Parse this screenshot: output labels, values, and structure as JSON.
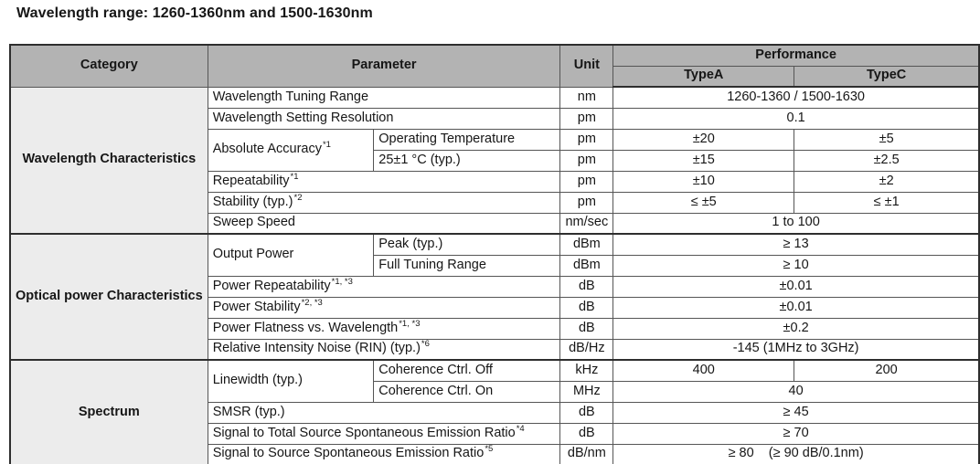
{
  "title": "Wavelength range: 1260-1360nm and 1500-1630nm",
  "colors": {
    "header_bg": "#b3b3b3",
    "category_bg": "#ececec",
    "border_thick": "#2e2e2e",
    "border_thin": "#555555",
    "text": "#161616"
  },
  "table": {
    "headers": {
      "category": "Category",
      "parameter": "Parameter",
      "unit": "Unit",
      "performance": "Performance",
      "type_a": "TypeA",
      "type_c": "TypeC"
    },
    "rows": [
      {
        "sep": false,
        "cells": [
          {
            "t": "Wavelength Characteristics",
            "cls": "cat",
            "rs": 7
          },
          {
            "t": "Wavelength Tuning Range",
            "cls": "param",
            "cs": 2
          },
          {
            "t": "nm",
            "cls": "unit"
          },
          {
            "t": "1260-1360 / 1500-1630",
            "cls": "val",
            "cs": 2
          }
        ]
      },
      {
        "sep": false,
        "cells": [
          {
            "t": "Wavelength Setting Resolution",
            "cls": "param",
            "cs": 2
          },
          {
            "t": "pm",
            "cls": "unit"
          },
          {
            "t": "0.1",
            "cls": "val",
            "cs": 2
          }
        ]
      },
      {
        "sep": false,
        "cells": [
          {
            "t": "Absolute Accuracy",
            "sup": "*1",
            "cls": "param",
            "rs": 2
          },
          {
            "t": "Operating Temperature",
            "cls": "sub"
          },
          {
            "t": "pm",
            "cls": "unit"
          },
          {
            "t": "±20",
            "cls": "val"
          },
          {
            "t": "±5",
            "cls": "val"
          }
        ]
      },
      {
        "sep": false,
        "cells": [
          {
            "t": "25±1 °C (typ.)",
            "cls": "sub"
          },
          {
            "t": "pm",
            "cls": "unit"
          },
          {
            "t": "±15",
            "cls": "val"
          },
          {
            "t": "±2.5",
            "cls": "val"
          }
        ]
      },
      {
        "sep": false,
        "cells": [
          {
            "t": "Repeatability",
            "sup": "*1",
            "cls": "param",
            "cs": 2
          },
          {
            "t": "pm",
            "cls": "unit"
          },
          {
            "t": "±10",
            "cls": "val"
          },
          {
            "t": "±2",
            "cls": "val"
          }
        ]
      },
      {
        "sep": false,
        "cells": [
          {
            "t": "Stability (typ.)",
            "sup": "*2",
            "cls": "param",
            "cs": 2
          },
          {
            "t": "pm",
            "cls": "unit"
          },
          {
            "t": "≤ ±5",
            "cls": "val"
          },
          {
            "t": "≤ ±1",
            "cls": "val"
          }
        ]
      },
      {
        "sep": false,
        "cells": [
          {
            "t": "Sweep Speed",
            "cls": "param",
            "cs": 2
          },
          {
            "t": "nm/sec",
            "cls": "unit"
          },
          {
            "t": "1 to 100",
            "cls": "val",
            "cs": 2
          }
        ]
      },
      {
        "sep": true,
        "cells": [
          {
            "t": "Optical power Characteristics",
            "cls": "cat",
            "rs": 6
          },
          {
            "t": "Output Power",
            "cls": "param",
            "rs": 2
          },
          {
            "t": "Peak (typ.)",
            "cls": "sub"
          },
          {
            "t": "dBm",
            "cls": "unit"
          },
          {
            "t": "≥ 13",
            "cls": "val",
            "cs": 2
          }
        ]
      },
      {
        "sep": false,
        "cells": [
          {
            "t": "Full Tuning Range",
            "cls": "sub"
          },
          {
            "t": "dBm",
            "cls": "unit"
          },
          {
            "t": "≥ 10",
            "cls": "val",
            "cs": 2
          }
        ]
      },
      {
        "sep": false,
        "cells": [
          {
            "t": "Power Repeatability",
            "sup": "*1, *3",
            "cls": "param",
            "cs": 2
          },
          {
            "t": "dB",
            "cls": "unit"
          },
          {
            "t": "±0.01",
            "cls": "val",
            "cs": 2
          }
        ]
      },
      {
        "sep": false,
        "cells": [
          {
            "t": "Power Stability",
            "sup": "*2, *3",
            "cls": "param",
            "cs": 2
          },
          {
            "t": "dB",
            "cls": "unit"
          },
          {
            "t": "±0.01",
            "cls": "val",
            "cs": 2
          }
        ]
      },
      {
        "sep": false,
        "cells": [
          {
            "t": "Power Flatness vs. Wavelength",
            "sup": "*1, *3",
            "cls": "param",
            "cs": 2
          },
          {
            "t": "dB",
            "cls": "unit"
          },
          {
            "t": "±0.2",
            "cls": "val",
            "cs": 2
          }
        ]
      },
      {
        "sep": false,
        "cells": [
          {
            "t": "Relative Intensity Noise (RIN) (typ.)",
            "sup": "*6",
            "cls": "param",
            "cs": 2
          },
          {
            "t": "dB/Hz",
            "cls": "unit"
          },
          {
            "t": "-145 (1MHz to 3GHz)",
            "cls": "val",
            "cs": 2
          }
        ]
      },
      {
        "sep": true,
        "cells": [
          {
            "t": "Spectrum",
            "cls": "cat",
            "rs": 5
          },
          {
            "t": "Linewidth (typ.)",
            "cls": "param",
            "rs": 2
          },
          {
            "t": "Coherence Ctrl. Off",
            "cls": "sub"
          },
          {
            "t": "kHz",
            "cls": "unit"
          },
          {
            "t": "400",
            "cls": "val"
          },
          {
            "t": "200",
            "cls": "val"
          }
        ]
      },
      {
        "sep": false,
        "cells": [
          {
            "t": "Coherence Ctrl. On",
            "cls": "sub"
          },
          {
            "t": "MHz",
            "cls": "unit"
          },
          {
            "t": "40",
            "cls": "val",
            "cs": 2
          }
        ]
      },
      {
        "sep": false,
        "cells": [
          {
            "t": "SMSR (typ.)",
            "cls": "param",
            "cs": 2
          },
          {
            "t": "dB",
            "cls": "unit"
          },
          {
            "t": "≥ 45",
            "cls": "val",
            "cs": 2
          }
        ]
      },
      {
        "sep": false,
        "cells": [
          {
            "t": "Signal to Total Source Spontaneous Emission Ratio",
            "sup": "*4",
            "cls": "param",
            "cs": 2
          },
          {
            "t": "dB",
            "cls": "unit"
          },
          {
            "t": "≥ 70",
            "cls": "val",
            "cs": 2
          }
        ]
      },
      {
        "sep": false,
        "cells": [
          {
            "t": "Signal to Source Spontaneous Emission Ratio",
            "sup": "*5",
            "cls": "param",
            "cs": 2
          },
          {
            "t": "dB/nm",
            "cls": "unit"
          },
          {
            "t": "≥ 80    (≥ 90 dB/0.1nm)",
            "cls": "val",
            "cs": 2
          }
        ]
      }
    ]
  }
}
